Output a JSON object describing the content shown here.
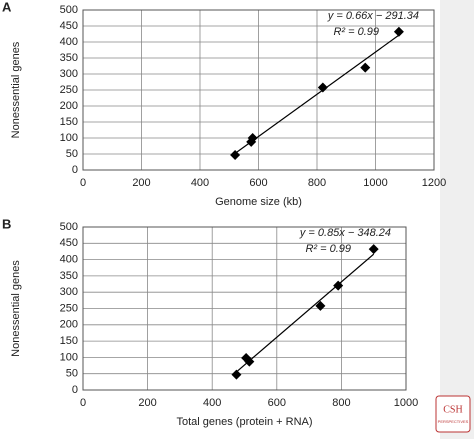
{
  "chart_data": [
    {
      "type": "scatter",
      "panel": "A",
      "x_label": "Genome size (kb)",
      "y_label": "Nonessential genes",
      "x": [
        520,
        575,
        580,
        820,
        965,
        1080
      ],
      "values": [
        47,
        88,
        100,
        258,
        320,
        432
      ],
      "color": "#000000",
      "xlim": [
        0,
        1200
      ],
      "xticks": [
        0,
        200,
        400,
        600,
        800,
        1000,
        1200
      ],
      "ylim": [
        0,
        500
      ],
      "yticks": [
        0,
        50,
        100,
        150,
        200,
        250,
        300,
        350,
        400,
        450,
        500
      ],
      "grid": true,
      "fit": {
        "slope": 0.66,
        "intercept": -291.34
      },
      "equation": "y = 0.66x − 291.34",
      "r_squared": "R² = 0.99"
    },
    {
      "type": "scatter",
      "panel": "B",
      "x_label": "Total genes (protein + RNA)",
      "y_label": "Nonessential genes",
      "x": [
        475,
        505,
        515,
        735,
        790,
        900
      ],
      "values": [
        47,
        98,
        87,
        258,
        320,
        432
      ],
      "color": "#000000",
      "xlim": [
        0,
        1000
      ],
      "xticks": [
        0,
        200,
        400,
        600,
        800,
        1000
      ],
      "ylim": [
        0,
        500
      ],
      "yticks": [
        0,
        50,
        100,
        150,
        200,
        250,
        300,
        350,
        400,
        450,
        500
      ],
      "grid": true,
      "fit": {
        "slope": 0.85,
        "intercept": -348.24
      },
      "equation": "y = 0.85x − 348.24",
      "r_squared": "R² = 0.99"
    }
  ],
  "logo": {
    "text": "CSH",
    "subtext": "PERSPECTIVES"
  }
}
